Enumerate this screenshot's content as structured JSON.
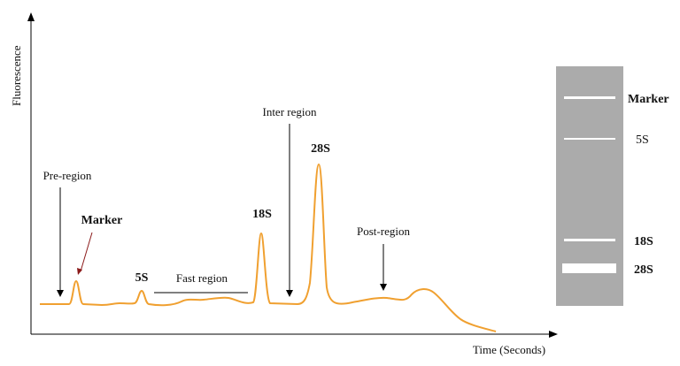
{
  "axes": {
    "y_label": "Fluorescence",
    "x_label": "Time (Seconds)"
  },
  "annotations": {
    "pre_region": "Pre-region",
    "marker": "Marker",
    "five_s": "5S",
    "fast_region": "Fast region",
    "eighteen_s": "18S",
    "inter_region": "Inter region",
    "twenty_eight_s": "28S",
    "post_region": "Post-region"
  },
  "gel": {
    "bands": [
      {
        "label": "Marker",
        "bold": true
      },
      {
        "label": "5S",
        "bold": false
      },
      {
        "label": "18S",
        "bold": false
      },
      {
        "label": "28S",
        "bold": false
      }
    ]
  },
  "colors": {
    "trace": "#F0A030",
    "gel_background": "#ABABAB",
    "band": "#FFFFFF",
    "axis": "#000000"
  }
}
